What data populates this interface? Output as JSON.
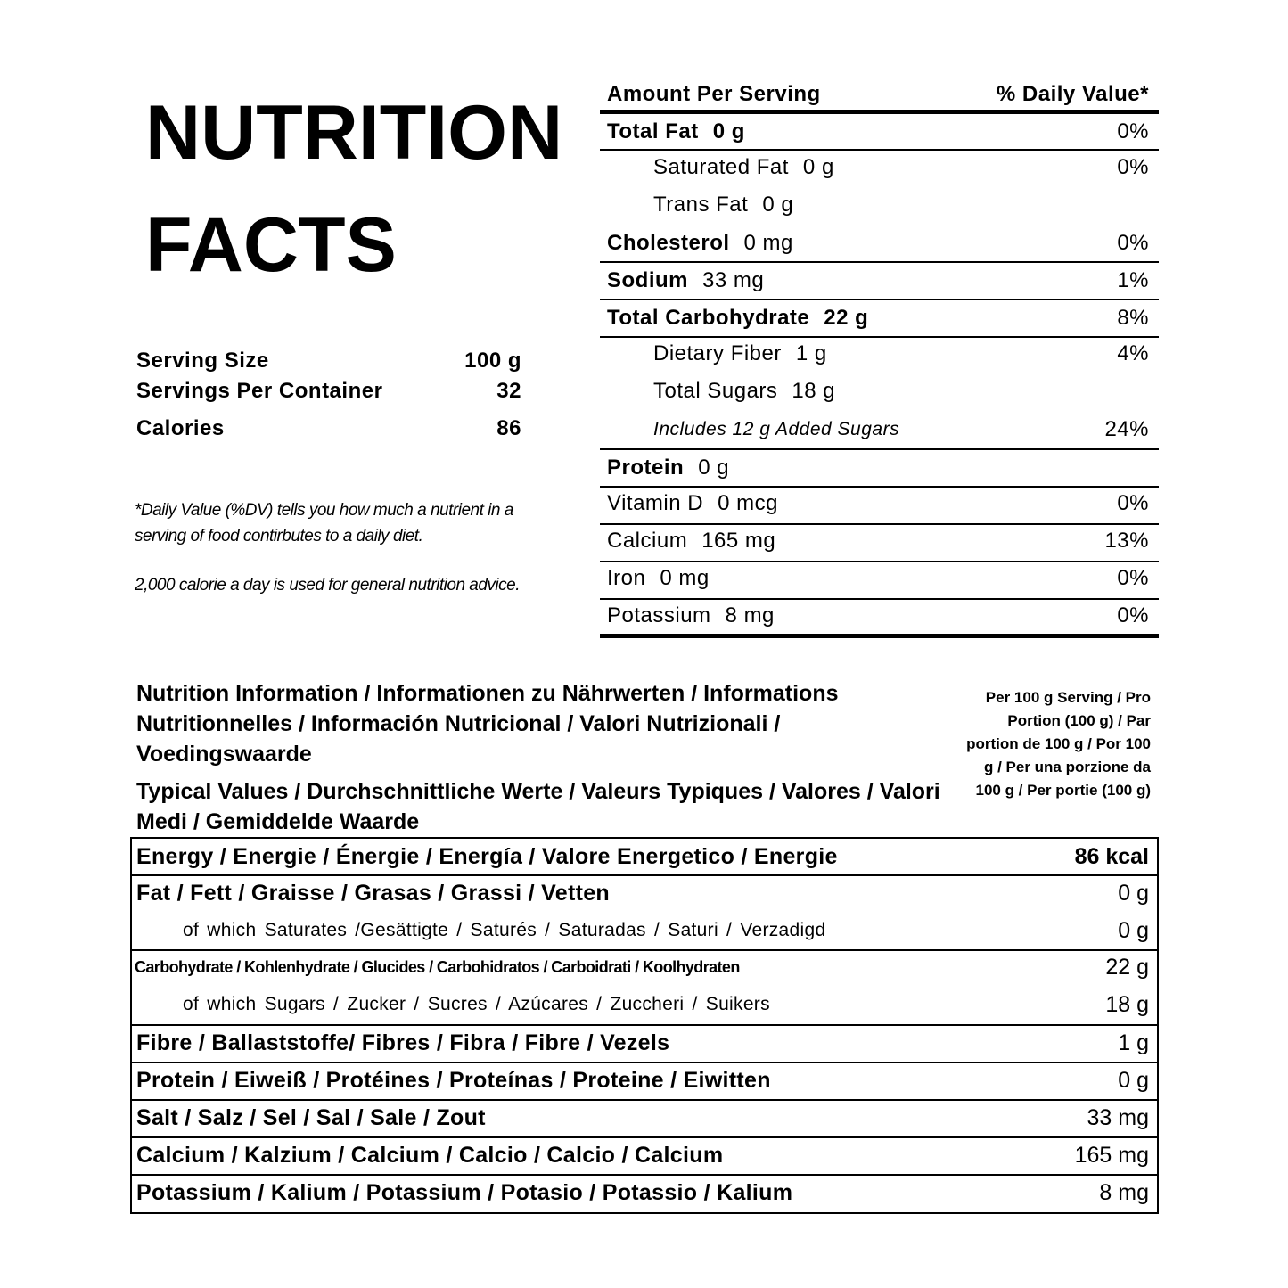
{
  "title": {
    "line1": "NUTRITION",
    "line2": "FACTS"
  },
  "serving": [
    {
      "label": "Serving Size",
      "value": "100 g"
    },
    {
      "label": "Servings Per Container",
      "value": 32
    },
    {
      "label": "Calories",
      "value": 86
    }
  ],
  "notes": [
    "*Daily Value (%DV) tells you how much a nutrient in a serving of food contirbutes to a daily diet.",
    "2,000 calorie a day is used for general nutrition advice."
  ],
  "us_panel": {
    "header": {
      "amount": "Amount Per Serving",
      "daily_value": "% Daily Value*"
    },
    "rows": [
      {
        "name": "Total Fat",
        "amount": "0 g",
        "dv": "0%"
      },
      {
        "name": "Saturated Fat",
        "amount": "0 g",
        "dv": "0%"
      },
      {
        "name": "Trans Fat",
        "amount": "0 g"
      },
      {
        "name": "Cholesterol",
        "amount": "0 mg",
        "dv": "0%"
      },
      {
        "name": "Sodium",
        "amount": "33 mg",
        "dv": "1%"
      },
      {
        "name": "Total Carbohydrate",
        "amount": "22 g",
        "dv": "8%"
      },
      {
        "name": "Dietary Fiber",
        "amount": "1 g",
        "dv": "4%"
      },
      {
        "name": "Total Sugars",
        "amount": "18 g"
      },
      {
        "name": "Includes 12 g Added Sugars",
        "dv": "24%"
      },
      {
        "name": "Protein",
        "amount": "0 g"
      },
      {
        "name": "Vitamin D",
        "amount": "0 mcg",
        "dv": "0%"
      },
      {
        "name": "Calcium",
        "amount": "165 mg",
        "dv": "13%"
      },
      {
        "name": "Iron",
        "amount": "0 mg",
        "dv": "0%"
      },
      {
        "name": "Potassium",
        "amount": "8 mg",
        "dv": "0%"
      }
    ]
  },
  "eu_panel": {
    "heading": "Nutrition Information / Informationen zu Nährwerten / Informations Nutritionnelles / Información Nutricional / Valori Nutrizionali / Voedingswaarde",
    "subheading": "Typical Values / Durchschnittliche Werte / Valeurs Typiques / Valores / Valori Medi / Gemiddelde Waarde",
    "column_header": "Per 100 g Serving / Pro Portion (100 g) / Par portion de 100 g / Por 100 g / Per una porzione da 100 g / Per portie (100 g)",
    "rows": [
      {
        "name": "Energy / Energie / Énergie / Energía / Valore Energetico / Energie",
        "value": "86 kcal"
      },
      {
        "name": "Fat / Fett / Graisse / Grasas / Grassi / Vetten",
        "value": "0 g"
      },
      {
        "name": "of which Saturates /Gesättigte / Saturés / Saturadas / Saturi / Verzadigd",
        "value": "0 g"
      },
      {
        "name": "Carbohydrate / Kohlenhydrate / Glucides / Carbohidratos / Carboidrati / Koolhydraten",
        "value": "22 g"
      },
      {
        "name": "of which Sugars / Zucker / Sucres / Azúcares / Zuccheri / Suikers",
        "value": "18 g"
      },
      {
        "name": "Fibre / Ballaststoffe/ Fibres / Fibra / Fibre / Vezels",
        "value": "1 g"
      },
      {
        "name": "Protein / Eiweiß / Protéines / Proteínas / Proteine / Eiwitten",
        "value": "0 g"
      },
      {
        "name": "Salt / Salz / Sel / Sal / Sale / Zout",
        "value": "33 mg"
      },
      {
        "name": "Calcium / Kalzium / Calcium / Calcio / Calcio / Calcium",
        "value": "165 mg"
      },
      {
        "name": "Potassium / Kalium / Potassium / Potasio / Potassio / Kalium",
        "value": "8 mg"
      }
    ]
  }
}
